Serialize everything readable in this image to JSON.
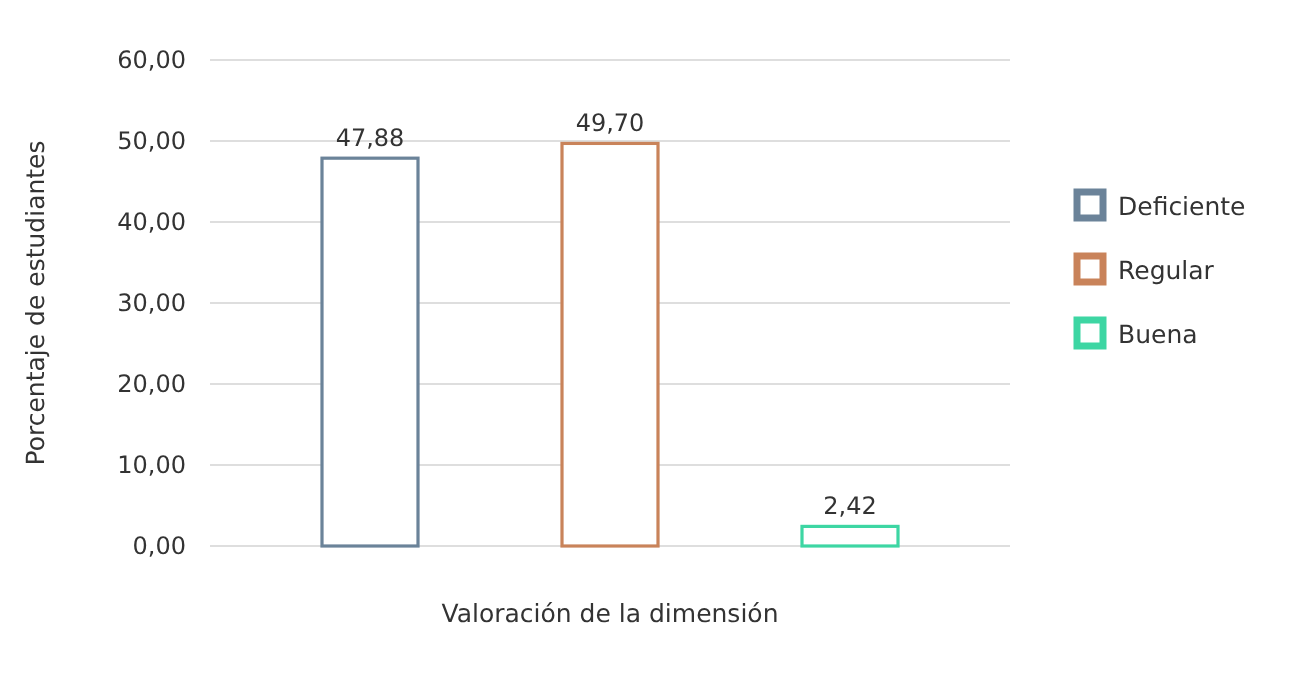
{
  "chart_data": {
    "type": "bar",
    "xlabel": "Valoración de la dimensión",
    "ylabel": "Porcentaje de estudiantes",
    "categories": [
      null
    ],
    "series": [
      {
        "name": "Deficiente",
        "color": "#6b8399",
        "values": [
          47.88
        ],
        "value_labels": [
          "47,88"
        ]
      },
      {
        "name": "Regular",
        "color": "#c9835a",
        "values": [
          49.7
        ],
        "value_labels": [
          "49,70"
        ]
      },
      {
        "name": "Buena",
        "color": "#3dd6a3",
        "values": [
          2.42
        ],
        "value_labels": [
          "2,42"
        ]
      }
    ],
    "ylim": [
      0,
      60
    ],
    "yticks": [
      {
        "value": 0,
        "label": "0,00"
      },
      {
        "value": 10,
        "label": "10,00"
      },
      {
        "value": 20,
        "label": "20,00"
      },
      {
        "value": 30,
        "label": "30,00"
      },
      {
        "value": 40,
        "label": "40,00"
      },
      {
        "value": 50,
        "label": "50,00"
      },
      {
        "value": 60,
        "label": "60,00"
      }
    ],
    "grid": "y",
    "legend": "right"
  }
}
